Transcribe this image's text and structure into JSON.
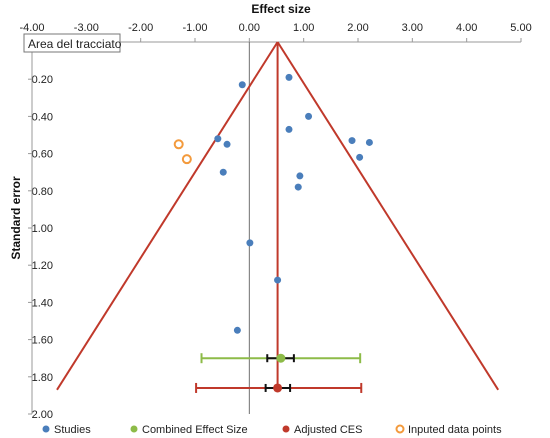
{
  "tooltip": {
    "label": "Area del tracciato"
  },
  "colors": {
    "study": "#4a7ebb",
    "combined": "#8dbb48",
    "adjusted": "#c0392b",
    "imputed": "#f39a3c",
    "funnel": "#c0392b",
    "zero_line": "#707070",
    "axis": "#999999"
  },
  "chart_data": {
    "type": "scatter",
    "title": "",
    "xlabel": "Effect size",
    "ylabel": "Standard error",
    "x_axis_position": "top",
    "y_axis_inverted": true,
    "xlim": [
      -4.0,
      5.0
    ],
    "ylim": [
      0.1,
      2.0
    ],
    "x_ticks": [
      -4.0,
      -3.0,
      -2.0,
      -1.0,
      0.0,
      1.0,
      2.0,
      3.0,
      4.0,
      5.0
    ],
    "x_tick_labels": [
      "-4.00",
      "-3.00",
      "-2.00",
      "-1.00",
      "0.00",
      "1.00",
      "2.00",
      "3.00",
      "4.00",
      "5.00"
    ],
    "y_ticks": [
      0.2,
      0.4,
      0.6,
      0.8,
      1.0,
      1.2,
      1.4,
      1.6,
      1.8,
      2.0
    ],
    "y_tick_labels": [
      "0.20",
      "0.40",
      "0.60",
      "0.80",
      "1.00",
      "1.20",
      "1.40",
      "1.60",
      "1.80",
      "2.00"
    ],
    "grid": false,
    "legend_position": "bottom",
    "series": [
      {
        "name": "Studies",
        "marker": "filled-circle",
        "points": [
          {
            "x": 0.73,
            "y": 0.19
          },
          {
            "x": -0.13,
            "y": 0.23
          },
          {
            "x": 1.09,
            "y": 0.4
          },
          {
            "x": 0.73,
            "y": 0.47
          },
          {
            "x": -0.58,
            "y": 0.52
          },
          {
            "x": -0.41,
            "y": 0.55
          },
          {
            "x": 1.89,
            "y": 0.53
          },
          {
            "x": 2.21,
            "y": 0.54
          },
          {
            "x": 2.03,
            "y": 0.62
          },
          {
            "x": -0.48,
            "y": 0.7
          },
          {
            "x": 0.93,
            "y": 0.72
          },
          {
            "x": 0.9,
            "y": 0.78
          },
          {
            "x": 0.01,
            "y": 1.08
          },
          {
            "x": 0.52,
            "y": 1.28
          },
          {
            "x": -0.22,
            "y": 1.55
          }
        ]
      },
      {
        "name": "Combined Effect Size",
        "marker": "filled-circle",
        "points": [
          {
            "x": 0.58,
            "y": 1.7
          }
        ],
        "ci": {
          "low": -0.88,
          "high": 2.04,
          "inner_low": 0.33,
          "inner_high": 0.82
        }
      },
      {
        "name": "Adjusted CES",
        "marker": "filled-circle",
        "points": [
          {
            "x": 0.52,
            "y": 1.86
          }
        ],
        "ci": {
          "low": -0.98,
          "high": 2.06,
          "inner_low": 0.3,
          "inner_high": 0.75
        }
      },
      {
        "name": "Inputed data points",
        "marker": "open-circle",
        "points": [
          {
            "x": -1.3,
            "y": 0.55
          },
          {
            "x": -1.15,
            "y": 0.63
          }
        ]
      }
    ],
    "funnel": {
      "apex_x": 0.52,
      "apex_y": 0.0,
      "left_bottom_x": -3.54,
      "right_bottom_x": 4.58,
      "bottom_y": 1.87
    },
    "center_line_x": 0.52,
    "zero_line_x": 0.0
  }
}
